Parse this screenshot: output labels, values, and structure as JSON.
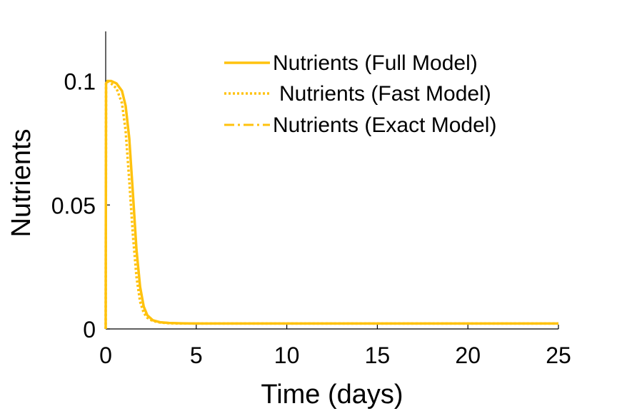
{
  "chart_data": {
    "type": "line",
    "title": "",
    "xlabel": "Time (days)",
    "ylabel": "Nutrients",
    "xlim": [
      0,
      25
    ],
    "ylim": [
      0,
      0.12
    ],
    "xticks": [
      0,
      5,
      10,
      15,
      20,
      25
    ],
    "xtick_labels": [
      "0",
      "5",
      "10",
      "15",
      "20",
      "25"
    ],
    "yticks": [
      0,
      0.05,
      0.1
    ],
    "ytick_labels": [
      "0",
      "0.05",
      "0.1"
    ],
    "grid": false,
    "legend_position": "top-right",
    "color": "#FFC20E",
    "series": [
      {
        "name": "Nutrients (Full Model)",
        "style": "solid",
        "x": [
          0,
          0.02,
          0.1,
          0.3,
          0.6,
          0.9,
          1.1,
          1.3,
          1.5,
          1.7,
          1.9,
          2.1,
          2.3,
          2.6,
          3.0,
          3.5,
          4.0,
          5.0,
          6.0,
          8.0,
          10.0,
          15.0,
          20.0,
          25.0
        ],
        "y": [
          0,
          0.099,
          0.1,
          0.1,
          0.099,
          0.096,
          0.09,
          0.077,
          0.055,
          0.032,
          0.017,
          0.009,
          0.0055,
          0.0035,
          0.0027,
          0.0024,
          0.0023,
          0.0022,
          0.0022,
          0.0022,
          0.0022,
          0.0022,
          0.0022,
          0.0022
        ]
      },
      {
        "name": "Nutrients (Fast Model)",
        "style": "dotted",
        "x": [
          0,
          0.02,
          0.1,
          0.3,
          0.6,
          0.9,
          1.1,
          1.3,
          1.5,
          1.7,
          1.9,
          2.1,
          2.3,
          2.6,
          3.0,
          3.5,
          4.0,
          5.0,
          6.0,
          8.0,
          10.0,
          15.0,
          20.0,
          25.0
        ],
        "y": [
          0,
          0.099,
          0.1,
          0.099,
          0.097,
          0.091,
          0.08,
          0.06,
          0.038,
          0.021,
          0.011,
          0.0065,
          0.0045,
          0.0032,
          0.0026,
          0.0023,
          0.0022,
          0.0022,
          0.0022,
          0.0022,
          0.0022,
          0.0022,
          0.0022,
          0.0022
        ]
      },
      {
        "name": "Nutrients (Exact Model)",
        "style": "dashdot",
        "x": [
          0,
          0.02,
          0.1,
          0.3,
          0.6,
          0.9,
          1.1,
          1.3,
          1.5,
          1.7,
          1.9,
          2.1,
          2.3,
          2.6,
          3.0,
          3.5,
          4.0,
          5.0,
          6.0,
          8.0,
          10.0,
          15.0,
          20.0,
          25.0
        ],
        "y": [
          0,
          0.099,
          0.1,
          0.1,
          0.099,
          0.096,
          0.09,
          0.077,
          0.055,
          0.032,
          0.017,
          0.009,
          0.0055,
          0.0035,
          0.0027,
          0.0024,
          0.0023,
          0.0022,
          0.0022,
          0.0022,
          0.0022,
          0.0022,
          0.0022,
          0.0022
        ]
      }
    ]
  }
}
